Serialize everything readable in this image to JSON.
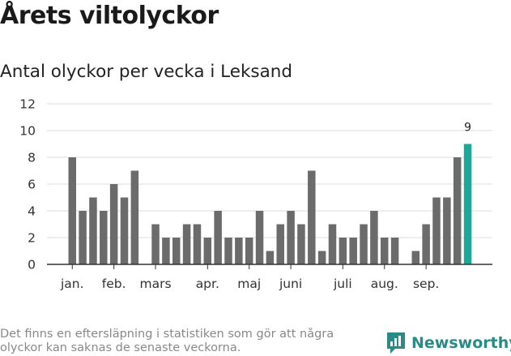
{
  "title": "Årets viltolyckor",
  "subtitle": "Antal olyckor per vecka i Leksand",
  "footnote": "Det finns en eftersläpning i statistiken som gör att några olyckor kan saknas de senaste veckorna.",
  "brand": "Newsworthy",
  "colors": {
    "bar": "#6b6b6b",
    "highlight": "#1aa89b",
    "grid": "#dddddd",
    "axis": "#333333",
    "brand": "#2a8a85"
  },
  "chart_data": {
    "type": "bar",
    "title": "Antal olyckor per vecka i Leksand",
    "xlabel": "",
    "ylabel": "",
    "ylim": [
      0,
      12
    ],
    "yticks": [
      0,
      2,
      4,
      6,
      8,
      10,
      12
    ],
    "x_tick_labels": [
      "jan.",
      "feb.",
      "mars",
      "apr.",
      "maj",
      "juni",
      "juli",
      "aug.",
      "sep."
    ],
    "x_tick_weeks": [
      1,
      5,
      9,
      14,
      18,
      22,
      27,
      31,
      35
    ],
    "weeks": [
      1,
      2,
      3,
      4,
      5,
      6,
      7,
      8,
      9,
      10,
      11,
      12,
      13,
      14,
      15,
      16,
      17,
      18,
      19,
      20,
      21,
      22,
      23,
      24,
      25,
      26,
      27,
      28,
      29,
      30,
      31,
      32,
      33,
      34,
      35,
      36,
      37,
      38,
      39
    ],
    "values": [
      8,
      4,
      5,
      4,
      6,
      5,
      7,
      0,
      3,
      2,
      2,
      3,
      3,
      2,
      4,
      2,
      2,
      2,
      4,
      1,
      3,
      4,
      3,
      7,
      1,
      3,
      2,
      2,
      3,
      4,
      2,
      2,
      0,
      1,
      3,
      5,
      5,
      8,
      9
    ],
    "highlight_index": 38,
    "data_labels": [
      {
        "week": 39,
        "text": "9"
      }
    ]
  }
}
